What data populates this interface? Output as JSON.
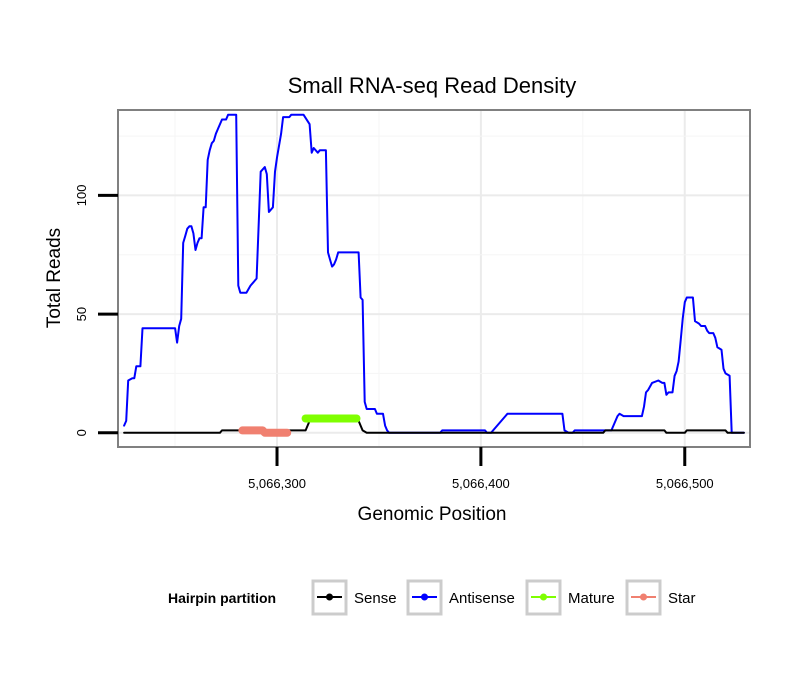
{
  "chart_data": {
    "type": "line",
    "title": "Small RNA-seq Read Density",
    "xlabel": "Genomic Position",
    "ylabel": "Total Reads",
    "xlim": [
      5066222,
      5066532
    ],
    "ylim": [
      -6,
      136
    ],
    "x_ticks": [
      5066300,
      5066400,
      5066500
    ],
    "x_tick_labels": [
      "5,066,300",
      "5,066,400",
      "5,066,500"
    ],
    "y_ticks": [
      0,
      50,
      100
    ],
    "y_tick_labels": [
      "0",
      "50",
      "100"
    ],
    "grid": true,
    "legend": {
      "title": "Hairpin partition",
      "position": "bottom",
      "entries": [
        "Sense",
        "Antisense",
        "Mature",
        "Star"
      ]
    },
    "series": [
      {
        "name": "Sense",
        "color": "#000000",
        "points": [
          [
            5066225,
            0
          ],
          [
            5066272,
            0
          ],
          [
            5066273,
            1
          ],
          [
            5066314,
            1
          ],
          [
            5066316,
            5
          ],
          [
            5066340,
            5
          ],
          [
            5066342,
            1
          ],
          [
            5066344,
            0
          ],
          [
            5066460,
            0
          ],
          [
            5066461,
            1
          ],
          [
            5066478,
            1
          ],
          [
            5066490,
            1
          ],
          [
            5066491,
            0
          ],
          [
            5066500,
            0
          ],
          [
            5066501,
            1
          ],
          [
            5066520,
            1
          ],
          [
            5066521,
            0
          ],
          [
            5066529,
            0
          ]
        ]
      },
      {
        "name": "Antisense",
        "color": "#0000ff",
        "points": [
          [
            5066225,
            3
          ],
          [
            5066226,
            5
          ],
          [
            5066227,
            22
          ],
          [
            5066229,
            23
          ],
          [
            5066230,
            23
          ],
          [
            5066231,
            28
          ],
          [
            5066233,
            28
          ],
          [
            5066234,
            44
          ],
          [
            5066250,
            44
          ],
          [
            5066251,
            38
          ],
          [
            5066252,
            45
          ],
          [
            5066253,
            48
          ],
          [
            5066254,
            80
          ],
          [
            5066255,
            83
          ],
          [
            5066256,
            86
          ],
          [
            5066257,
            87
          ],
          [
            5066258,
            87
          ],
          [
            5066259,
            84
          ],
          [
            5066260,
            77
          ],
          [
            5066261,
            80
          ],
          [
            5066262,
            82
          ],
          [
            5066263,
            82
          ],
          [
            5066264,
            95
          ],
          [
            5066265,
            95
          ],
          [
            5066266,
            115
          ],
          [
            5066267,
            119
          ],
          [
            5066268,
            122
          ],
          [
            5066269,
            123
          ],
          [
            5066270,
            126
          ],
          [
            5066271,
            128
          ],
          [
            5066273,
            132
          ],
          [
            5066275,
            132
          ],
          [
            5066276,
            134
          ],
          [
            5066280,
            134
          ],
          [
            5066281,
            62
          ],
          [
            5066282,
            59
          ],
          [
            5066285,
            59
          ],
          [
            5066287,
            62
          ],
          [
            5066289,
            64
          ],
          [
            5066290,
            65
          ],
          [
            5066291,
            88
          ],
          [
            5066292,
            110
          ],
          [
            5066294,
            112
          ],
          [
            5066295,
            109
          ],
          [
            5066296,
            93
          ],
          [
            5066298,
            95
          ],
          [
            5066299,
            110
          ],
          [
            5066300,
            116
          ],
          [
            5066302,
            126
          ],
          [
            5066303,
            133
          ],
          [
            5066306,
            133
          ],
          [
            5066307,
            134
          ],
          [
            5066313,
            134
          ],
          [
            5066316,
            130
          ],
          [
            5066317,
            118
          ],
          [
            5066318,
            120
          ],
          [
            5066320,
            118
          ],
          [
            5066321,
            119
          ],
          [
            5066324,
            119
          ],
          [
            5066325,
            76
          ],
          [
            5066326,
            73
          ],
          [
            5066327,
            70
          ],
          [
            5066328,
            71
          ],
          [
            5066329,
            73
          ],
          [
            5066330,
            76
          ],
          [
            5066340,
            76
          ],
          [
            5066341,
            57
          ],
          [
            5066342,
            56
          ],
          [
            5066343,
            13
          ],
          [
            5066344,
            10
          ],
          [
            5066348,
            10
          ],
          [
            5066349,
            8
          ],
          [
            5066352,
            8
          ],
          [
            5066353,
            3
          ],
          [
            5066354,
            1
          ],
          [
            5066355,
            0
          ],
          [
            5066380,
            0
          ],
          [
            5066381,
            1
          ],
          [
            5066402,
            1
          ],
          [
            5066403,
            0
          ],
          [
            5066405,
            0
          ],
          [
            5066406,
            1
          ],
          [
            5066412,
            7
          ],
          [
            5066413,
            8
          ],
          [
            5066440,
            8
          ],
          [
            5066441,
            1
          ],
          [
            5066443,
            0
          ],
          [
            5066445,
            0
          ],
          [
            5066446,
            1
          ],
          [
            5066464,
            1
          ],
          [
            5066467,
            7
          ],
          [
            5066468,
            8
          ],
          [
            5066470,
            7
          ],
          [
            5066479,
            7
          ],
          [
            5066480,
            11
          ],
          [
            5066481,
            17
          ],
          [
            5066482,
            18
          ],
          [
            5066484,
            21
          ],
          [
            5066487,
            22
          ],
          [
            5066489,
            21
          ],
          [
            5066490,
            21
          ],
          [
            5066491,
            16
          ],
          [
            5066492,
            17
          ],
          [
            5066494,
            17
          ],
          [
            5066495,
            24
          ],
          [
            5066496,
            26
          ],
          [
            5066497,
            30
          ],
          [
            5066498,
            39
          ],
          [
            5066499,
            48
          ],
          [
            5066500,
            55
          ],
          [
            5066501,
            57
          ],
          [
            5066504,
            57
          ],
          [
            5066505,
            47
          ],
          [
            5066507,
            46
          ],
          [
            5066508,
            45
          ],
          [
            5066510,
            45
          ],
          [
            5066511,
            43
          ],
          [
            5066512,
            42
          ],
          [
            5066514,
            42
          ],
          [
            5066515,
            40
          ],
          [
            5066516,
            36
          ],
          [
            5066518,
            35
          ],
          [
            5066519,
            27
          ],
          [
            5066520,
            25
          ],
          [
            5066522,
            24
          ],
          [
            5066523,
            0
          ],
          [
            5066529,
            0
          ]
        ]
      },
      {
        "name": "Mature",
        "color": "#7fff00",
        "points": [
          [
            5066314,
            6
          ],
          [
            5066339,
            6
          ]
        ]
      },
      {
        "name": "Star",
        "color": "#f08070",
        "points": [
          [
            5066283,
            1
          ],
          [
            5066293,
            1
          ],
          [
            5066294,
            0
          ],
          [
            5066305,
            0
          ]
        ]
      }
    ]
  }
}
